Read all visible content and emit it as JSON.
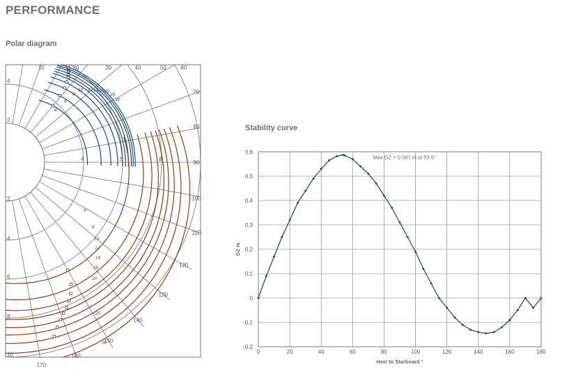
{
  "page": {
    "title": "PERFORMANCE"
  },
  "polar": {
    "title": "Polar diagram",
    "angle_labels": [
      "10",
      "20",
      "30",
      "40",
      "50",
      "60",
      "70",
      "80",
      "90",
      "100",
      "110",
      "120",
      "130",
      "140",
      "150",
      "160",
      "170"
    ],
    "upwind_radius_labels": [
      "2",
      "4"
    ],
    "downwind_radius_labels": [
      "2",
      "4",
      "6",
      "8",
      "10"
    ],
    "beam_radius_labels": [
      "4",
      "6",
      "8"
    ],
    "upwind_wind_labels": [
      "4",
      "6",
      "8",
      "10",
      "12",
      "14",
      "16",
      "20",
      "25",
      "30"
    ],
    "downwind_wind_labels": [
      "6",
      "8",
      "10",
      "12",
      "14",
      "16",
      "20",
      "25",
      "30"
    ],
    "colors": {
      "upwind": "#1f4a73",
      "downwind": "#8a3a14",
      "grid": "#8c8c8c"
    }
  },
  "chart_data": {
    "type": "line",
    "title": "Stability curve",
    "xlabel": "Heel to Starboard  °",
    "ylabel": "GZ m",
    "xlim": [
      0,
      180
    ],
    "ylim": [
      -0.2,
      0.6
    ],
    "xticks": [
      "0",
      "20",
      "40",
      "60",
      "80",
      "100",
      "120",
      "140",
      "160",
      "180"
    ],
    "yticks": [
      "-0.2",
      "-0.1",
      "0",
      "0.1",
      "0.2",
      "0.3",
      "0.4",
      "0.5",
      "0.6"
    ],
    "annotation": "Max GZ = 0.587 m at 53.9°",
    "grid": true,
    "series": [
      {
        "color": "#2b4a70",
        "x": [
          0,
          5,
          10,
          15,
          20,
          25,
          30,
          35,
          40,
          45,
          50,
          53.9,
          55,
          60,
          65,
          70,
          75,
          80,
          85,
          90,
          95,
          100,
          105,
          110,
          115,
          120,
          125,
          130,
          135,
          140,
          145,
          150,
          155,
          160,
          165,
          170,
          175,
          180
        ],
        "y": [
          0,
          0.09,
          0.17,
          0.25,
          0.32,
          0.39,
          0.44,
          0.49,
          0.53,
          0.565,
          0.582,
          0.587,
          0.585,
          0.57,
          0.54,
          0.51,
          0.47,
          0.42,
          0.37,
          0.31,
          0.25,
          0.19,
          0.12,
          0.06,
          0.0,
          -0.04,
          -0.08,
          -0.11,
          -0.13,
          -0.14,
          -0.145,
          -0.14,
          -0.12,
          -0.09,
          -0.05,
          0.0,
          -0.04,
          0.0
        ]
      }
    ]
  }
}
